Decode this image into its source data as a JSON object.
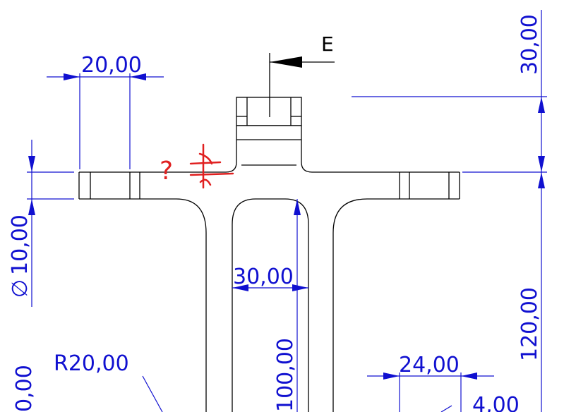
{
  "section_view": {
    "label": "E"
  },
  "dimensions": {
    "hole_spacing": "20,00",
    "top_height": "30,00",
    "hole_diameter_symbol": "∅",
    "hole_diameter_value": "10,00",
    "slot_width": "30,00",
    "total_height": "120,00",
    "slot_depth": "100,00",
    "fillet_radius": "R20,00",
    "bottom_width": "24,00",
    "bottom_offset": "4,00",
    "left_partial": "0,00"
  },
  "markup": {
    "question_mark": "?"
  },
  "colors": {
    "dimension": "#1010d0",
    "part": "#000000",
    "markup": "#e02020"
  }
}
